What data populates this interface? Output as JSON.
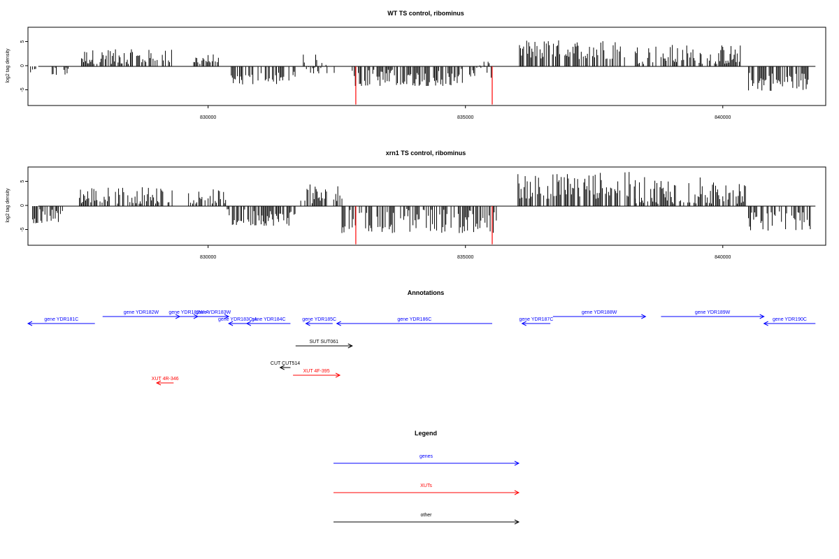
{
  "colors": {
    "genes": "#0000ff",
    "xuts": "#ff0000",
    "other": "#000000",
    "highlight": "#ff0000",
    "bars": "#000000"
  },
  "chart_data": [
    {
      "type": "bar",
      "title": "WT TS control, ribominus",
      "ylabel": "log2 tag density",
      "xlim": [
        826500,
        842000
      ],
      "ylim": [
        -8,
        8
      ],
      "x_ticks": [
        830000,
        835000,
        840000
      ],
      "x_tick_labels": [
        "830000",
        "835000",
        "840000"
      ],
      "y_ticks": [
        -5,
        0,
        5
      ],
      "y_tick_labels": [
        "-5",
        "0",
        "5"
      ],
      "highlight_positions": [
        832870,
        835520
      ],
      "highlight_value": -7.8,
      "segments": [
        {
          "start": 826550,
          "end": 826650,
          "min": -1.5,
          "max": 0
        },
        {
          "start": 826950,
          "end": 827050,
          "min": -1.8,
          "max": 0
        },
        {
          "start": 827200,
          "end": 827300,
          "min": -2.0,
          "max": 0
        },
        {
          "start": 827500,
          "end": 828200,
          "min": 0.5,
          "max": 3.5
        },
        {
          "start": 828250,
          "end": 829300,
          "min": 0.5,
          "max": 3.5
        },
        {
          "start": 829700,
          "end": 830200,
          "min": 0.5,
          "max": 2.5
        },
        {
          "start": 830450,
          "end": 831700,
          "min": -4.0,
          "max": -1.0
        },
        {
          "start": 831850,
          "end": 832450,
          "min": -1.5,
          "max": 2.5
        },
        {
          "start": 832800,
          "end": 834950,
          "min": -4.0,
          "max": -0.5
        },
        {
          "start": 835000,
          "end": 835500,
          "min": -2.5,
          "max": 1.0
        },
        {
          "start": 836050,
          "end": 838100,
          "min": 1.5,
          "max": 5.5
        },
        {
          "start": 838300,
          "end": 840350,
          "min": 0.5,
          "max": 4.5
        },
        {
          "start": 840500,
          "end": 841700,
          "min": -5.0,
          "max": -1.0
        }
      ]
    },
    {
      "type": "bar",
      "title": "xrn1 TS control, ribominus",
      "ylabel": "log2 tag density",
      "xlim": [
        826500,
        842000
      ],
      "ylim": [
        -8,
        8
      ],
      "x_ticks": [
        830000,
        835000,
        840000
      ],
      "x_tick_labels": [
        "830000",
        "835000",
        "840000"
      ],
      "y_ticks": [
        -5,
        0,
        5
      ],
      "y_tick_labels": [
        "-5",
        "0",
        "5"
      ],
      "highlight_positions": [
        832870,
        835520
      ],
      "highlight_value": -7.8,
      "segments": [
        {
          "start": 826550,
          "end": 827200,
          "min": -3.5,
          "max": -0.5
        },
        {
          "start": 827500,
          "end": 829300,
          "min": 0.5,
          "max": 4.0
        },
        {
          "start": 829600,
          "end": 830350,
          "min": 0.5,
          "max": 3.5
        },
        {
          "start": 830350,
          "end": 831700,
          "min": -4.0,
          "max": -0.5
        },
        {
          "start": 831800,
          "end": 832600,
          "min": 0.5,
          "max": 4.5
        },
        {
          "start": 832600,
          "end": 835600,
          "min": -5.5,
          "max": -0.5
        },
        {
          "start": 836000,
          "end": 838300,
          "min": 1.5,
          "max": 7.0
        },
        {
          "start": 838300,
          "end": 840450,
          "min": 0.5,
          "max": 6.0
        },
        {
          "start": 840500,
          "end": 841700,
          "min": -5.0,
          "max": -1.0
        }
      ]
    }
  ],
  "annotations": {
    "title": "Annotations",
    "xlim": [
      826500,
      842000
    ],
    "items": [
      {
        "label": "gene YDR181C",
        "start": 826500,
        "end": 827800,
        "strand": "-",
        "row": 1,
        "category": "gene"
      },
      {
        "label": "gene YDR182W",
        "start": 827950,
        "end": 829450,
        "strand": "+",
        "row": 0,
        "category": "gene"
      },
      {
        "label": "gene YDR182W-A",
        "start": 829450,
        "end": 829800,
        "strand": "+",
        "row": 0,
        "category": "gene"
      },
      {
        "label": "gene YDR183W",
        "start": 829800,
        "end": 830400,
        "strand": "+",
        "row": 0,
        "category": "gene"
      },
      {
        "label": "gene YDR183C-A",
        "start": 830400,
        "end": 830750,
        "strand": "-",
        "row": 1,
        "category": "gene"
      },
      {
        "label": "gene YDR184C",
        "start": 830750,
        "end": 831600,
        "strand": "-",
        "row": 1,
        "category": "gene"
      },
      {
        "label": "gene YDR185C",
        "start": 831900,
        "end": 832420,
        "strand": "-",
        "row": 1,
        "category": "gene"
      },
      {
        "label": "gene YDR186C",
        "start": 832500,
        "end": 835520,
        "strand": "-",
        "row": 1,
        "category": "gene"
      },
      {
        "label": "gene YDR187C",
        "start": 836100,
        "end": 836650,
        "strand": "-",
        "row": 1,
        "category": "gene"
      },
      {
        "label": "gene YDR188W",
        "start": 836700,
        "end": 838500,
        "strand": "+",
        "row": 0,
        "category": "gene"
      },
      {
        "label": "gene YDR189W",
        "start": 838800,
        "end": 840800,
        "strand": "+",
        "row": 0,
        "category": "gene"
      },
      {
        "label": "gene YDR190C",
        "start": 840800,
        "end": 841800,
        "strand": "-",
        "row": 1,
        "category": "gene"
      },
      {
        "label": "SUT SUT061",
        "start": 831700,
        "end": 832800,
        "strand": "+",
        "row": 2,
        "category": "other"
      },
      {
        "label": "CUT CUT514",
        "start": 831400,
        "end": 831600,
        "strand": "-",
        "row": 3,
        "category": "other"
      },
      {
        "label": "XUT 4F-395",
        "start": 831650,
        "end": 832560,
        "strand": "+",
        "row": 4,
        "category": "xut"
      },
      {
        "label": "XUT 4R-346",
        "start": 829000,
        "end": 829330,
        "strand": "-",
        "row": 5,
        "category": "xut"
      }
    ]
  },
  "legend": {
    "title": "Legend",
    "items": [
      {
        "label": "genes",
        "category": "gene"
      },
      {
        "label": "XUTs",
        "category": "xut"
      },
      {
        "label": "other",
        "category": "other"
      }
    ]
  }
}
